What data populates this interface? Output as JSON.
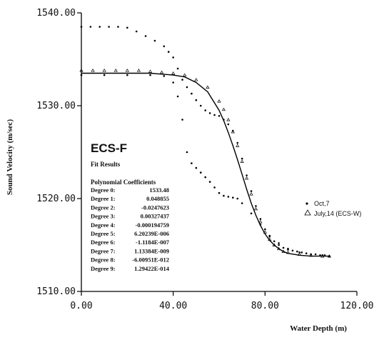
{
  "chart_data": {
    "type": "scatter",
    "title": "ECS-F",
    "subtitle": "Fit Results",
    "xlabel": "Water Depth (m)",
    "ylabel": "Sound Velocity (m/sec)",
    "xlim": [
      0,
      120
    ],
    "ylim": [
      1510,
      1540
    ],
    "x_ticks": [
      "0.00",
      "40.00",
      "80.00",
      "120.00"
    ],
    "y_ticks": [
      "1510.00",
      "1520.00",
      "1530.00",
      "1540.00"
    ],
    "x_tick_values": [
      0,
      40,
      80,
      120
    ],
    "y_tick_values": [
      1510,
      1520,
      1530,
      1540
    ],
    "grid": false,
    "legend_position": "right",
    "coefficients_heading": "Polynomial Coefficients",
    "coefficients": [
      {
        "label": "Degree 0:",
        "value": "1533.48"
      },
      {
        "label": "Degree 1:",
        "value": "0.048855"
      },
      {
        "label": "Degree 2:",
        "value": "-0.0247623"
      },
      {
        "label": "Degree 3:",
        "value": "0.00327437"
      },
      {
        "label": "Degree 4:",
        "value": "-0.000194759"
      },
      {
        "label": "Degree 5:",
        "value": "6.20239E-006"
      },
      {
        "label": "Degree 6:",
        "value": "-1.1184E-007"
      },
      {
        "label": "Degree 7:",
        "value": "1.13384E-009"
      },
      {
        "label": "Degree 8:",
        "value": "-6.00951E-012"
      },
      {
        "label": "Degree 9:",
        "value": "1.29422E-014"
      }
    ],
    "series": [
      {
        "name": "Oct,7",
        "marker": "dot",
        "x": [
          0,
          4,
          8,
          12,
          16,
          20,
          24,
          28,
          32,
          36,
          38,
          40,
          42,
          44,
          46,
          48,
          50,
          52,
          54,
          56,
          58,
          60,
          62,
          64,
          66,
          68,
          70,
          72,
          74,
          76,
          78,
          80,
          82,
          84,
          86,
          88,
          90,
          92,
          94,
          96,
          98,
          100,
          102,
          104,
          106,
          108
        ],
        "y": [
          1538.5,
          1538.5,
          1538.5,
          1538.5,
          1538.5,
          1538.4,
          1538.0,
          1537.5,
          1537.0,
          1536.4,
          1535.8,
          1535.2,
          1534.0,
          1532.8,
          1532.0,
          1531.3,
          1530.6,
          1530.0,
          1529.5,
          1529.2,
          1529.0,
          1528.9,
          1528.5,
          1528.0,
          1527.3,
          1526.0,
          1524.3,
          1522.5,
          1520.8,
          1519.2,
          1517.8,
          1516.7,
          1515.9,
          1515.4,
          1515.0,
          1514.7,
          1514.5,
          1514.4,
          1514.3,
          1514.2,
          1514.1,
          1514.0,
          1514.0,
          1513.9,
          1513.9,
          1513.8
        ]
      },
      {
        "name": "July,14 (ECS-W)",
        "marker": "triangle",
        "x": [
          0,
          5,
          10,
          15,
          20,
          25,
          30,
          35,
          40,
          45,
          50,
          55,
          60,
          62,
          64,
          66,
          68,
          70,
          72,
          74,
          76,
          78,
          80,
          82,
          84,
          86,
          88,
          90,
          95,
          100,
          105,
          108
        ],
        "y": [
          1533.8,
          1533.8,
          1533.8,
          1533.8,
          1533.8,
          1533.8,
          1533.7,
          1533.6,
          1533.5,
          1533.3,
          1532.8,
          1532.0,
          1530.5,
          1529.6,
          1528.5,
          1527.2,
          1525.7,
          1524.0,
          1522.2,
          1520.5,
          1518.9,
          1517.5,
          1516.4,
          1515.6,
          1515.0,
          1514.6,
          1514.3,
          1514.2,
          1514.0,
          1513.9,
          1513.8,
          1513.8
        ]
      },
      {
        "name": "",
        "marker": "dot",
        "x": [
          0,
          10,
          20,
          30,
          36,
          40,
          42,
          44,
          46,
          48,
          50,
          52,
          54,
          56,
          58,
          60,
          62,
          64,
          66,
          68,
          70,
          74,
          78,
          82,
          86,
          90,
          95,
          100,
          105,
          108
        ],
        "y": [
          1533.3,
          1533.3,
          1533.3,
          1533.3,
          1533.2,
          1532.5,
          1531.0,
          1528.5,
          1525.0,
          1523.8,
          1523.3,
          1522.8,
          1522.3,
          1521.8,
          1521.2,
          1520.6,
          1520.3,
          1520.2,
          1520.1,
          1520.0,
          1519.5,
          1518.4,
          1517.2,
          1516.0,
          1515.2,
          1514.6,
          1514.2,
          1514.0,
          1513.9,
          1513.8
        ]
      },
      {
        "name": "",
        "marker": "line",
        "x": [
          0,
          5,
          10,
          15,
          20,
          25,
          30,
          35,
          40,
          45,
          50,
          55,
          60,
          62,
          64,
          66,
          68,
          70,
          72,
          74,
          76,
          78,
          80,
          82,
          84,
          86,
          88,
          90,
          95,
          100,
          105,
          108
        ],
        "y": [
          1533.5,
          1533.5,
          1533.5,
          1533.5,
          1533.5,
          1533.5,
          1533.5,
          1533.4,
          1533.3,
          1533.1,
          1532.5,
          1531.5,
          1529.5,
          1528.4,
          1527.1,
          1525.7,
          1524.2,
          1522.6,
          1521.0,
          1519.5,
          1518.2,
          1517.1,
          1516.2,
          1515.5,
          1515.0,
          1514.6,
          1514.3,
          1514.1,
          1513.9,
          1513.8,
          1513.8,
          1513.8
        ]
      }
    ]
  }
}
